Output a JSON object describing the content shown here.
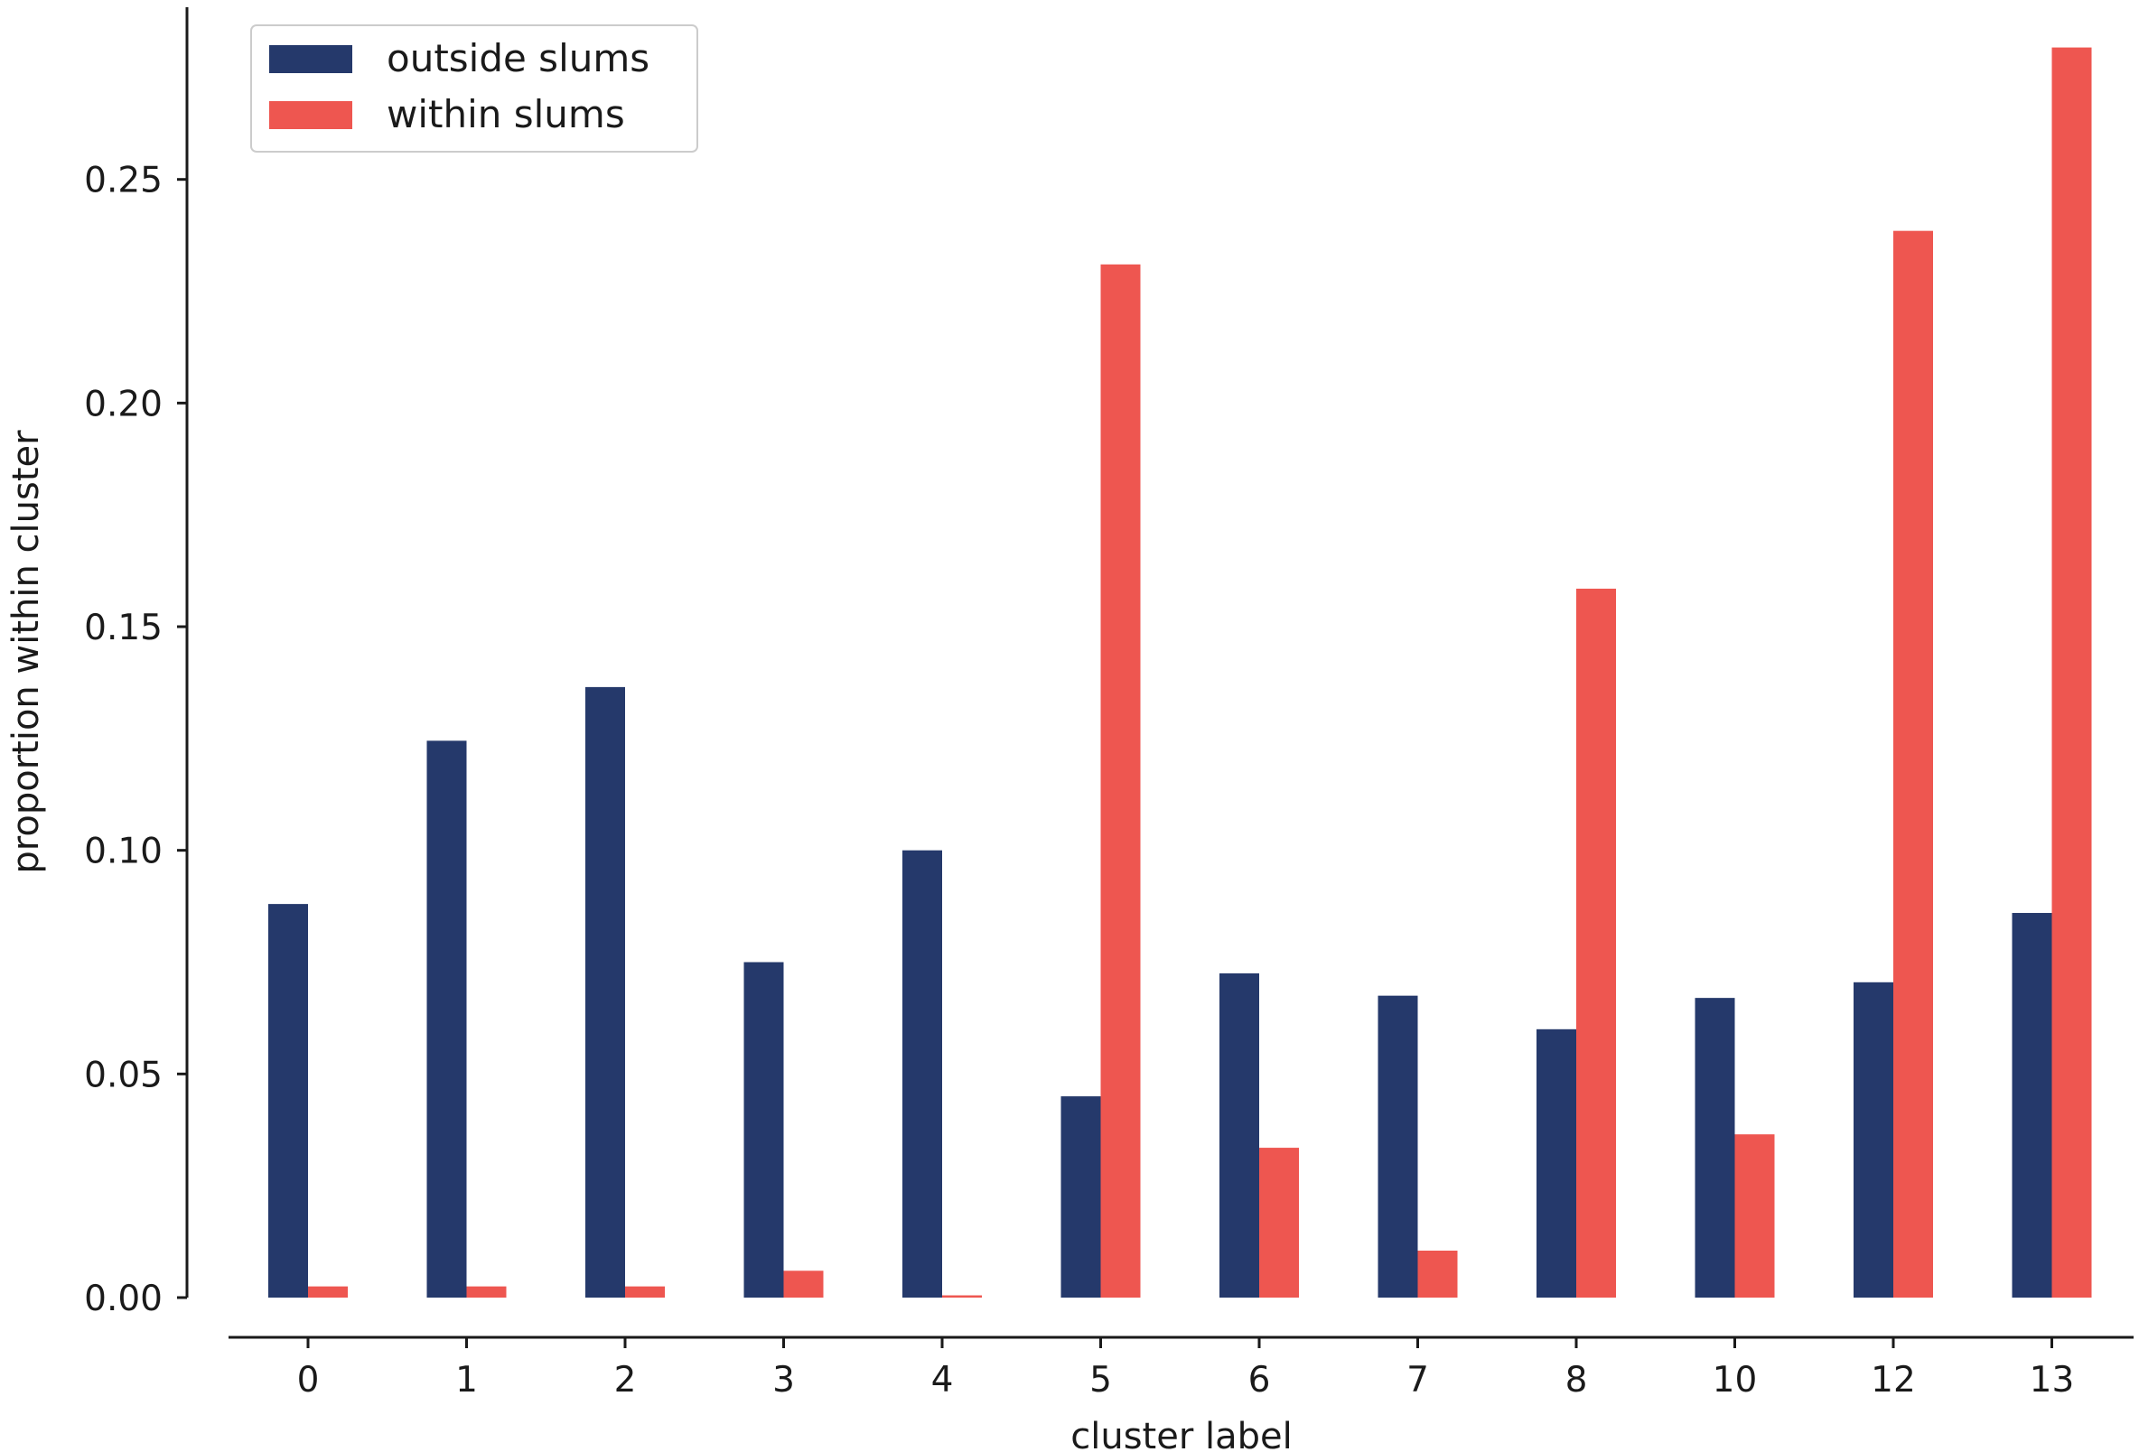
{
  "chart_data": {
    "type": "bar",
    "title": "",
    "xlabel": "cluster label",
    "ylabel": "proportion within cluster",
    "categories": [
      "0",
      "1",
      "2",
      "3",
      "4",
      "5",
      "6",
      "7",
      "8",
      "10",
      "12",
      "13"
    ],
    "series": [
      {
        "name": "outside slums",
        "color": "#25396b",
        "values": [
          0.088,
          0.1245,
          0.1365,
          0.075,
          0.1,
          0.045,
          0.0725,
          0.0675,
          0.06,
          0.067,
          0.0705,
          0.086
        ]
      },
      {
        "name": "within slums",
        "color": "#ee5650",
        "values": [
          0.0025,
          0.0025,
          0.0025,
          0.006,
          0.0005,
          0.231,
          0.0335,
          0.0105,
          0.1585,
          0.0365,
          0.2385,
          0.2795
        ]
      }
    ],
    "ylim": [
      0,
      0.2885
    ],
    "yticks": [
      "0.00",
      "0.05",
      "0.10",
      "0.15",
      "0.20",
      "0.25"
    ],
    "legend_position": "upper-left",
    "grid": false
  }
}
